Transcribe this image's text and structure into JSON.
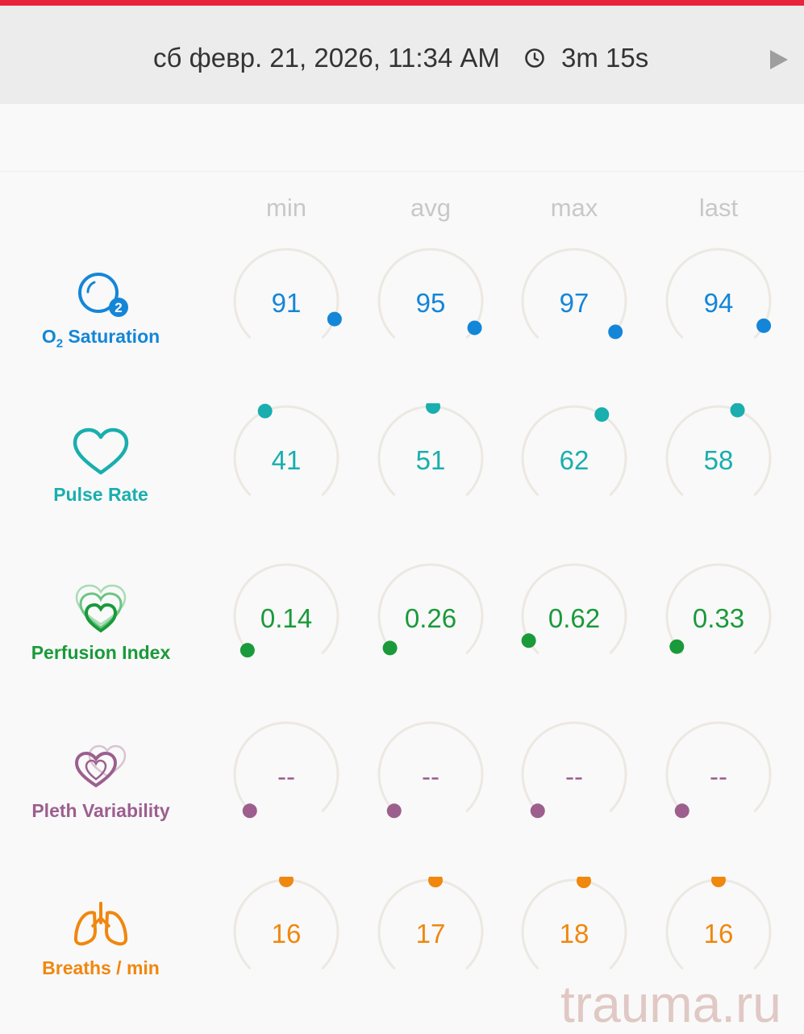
{
  "header": {
    "accent_color": "#e8243c",
    "datetime": "сб февр. 21, 2026, 11:34 AM",
    "duration": "3m 15s",
    "clock_icon": "clock-icon",
    "play_icon": "play-icon"
  },
  "columns": [
    "min",
    "avg",
    "max",
    "last"
  ],
  "metrics": [
    {
      "key": "spo2",
      "label_main": "O",
      "label_sub": "2",
      "label_rest": " Saturation",
      "color": "#1486d8",
      "icon": "o2-bubble-icon",
      "values": [
        "91",
        "95",
        "97",
        "94"
      ],
      "levels": [
        0.91,
        0.95,
        0.97,
        0.94
      ]
    },
    {
      "key": "pulse",
      "label": "Pulse Rate",
      "color": "#1aaeae",
      "icon": "heart-icon",
      "values": [
        "41",
        "51",
        "62",
        "58"
      ],
      "levels": [
        0.41,
        0.51,
        0.62,
        0.58
      ]
    },
    {
      "key": "pi",
      "label": "Perfusion Index",
      "color": "#1a9a3a",
      "icon": "layered-hearts-icon",
      "values": [
        "0.14",
        "0.26",
        "0.62",
        "0.33"
      ],
      "levels": [
        0.014,
        0.026,
        0.062,
        0.033
      ]
    },
    {
      "key": "pvi",
      "label": "Pleth Variability",
      "color": "#9c5f8e",
      "icon": "pleth-hearts-icon",
      "values": [
        "--",
        "--",
        "--",
        "--"
      ],
      "levels": [
        0,
        0,
        0,
        0
      ]
    },
    {
      "key": "rr",
      "label": "Breaths / min",
      "color": "#f0870e",
      "icon": "lungs-icon",
      "values": [
        "16",
        "17",
        "18",
        "16"
      ],
      "levels": [
        0.5,
        0.52,
        0.54,
        0.5
      ]
    }
  ],
  "watermark": "trauma.ru"
}
